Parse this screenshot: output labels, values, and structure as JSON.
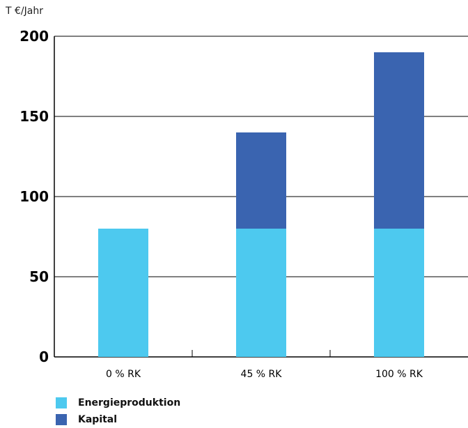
{
  "chart_data": {
    "type": "bar",
    "stacked": true,
    "unit_label": "T €/Jahr",
    "categories": [
      "0 % RK",
      "45 % RK",
      "100 % RK"
    ],
    "series": [
      {
        "name": "Energieproduktion",
        "values": [
          80,
          80,
          80
        ],
        "color": "#4dc9ef"
      },
      {
        "name": "Kapital",
        "values": [
          0,
          60,
          110
        ],
        "color": "#3a64b0"
      }
    ],
    "yticks": [
      "0",
      "50",
      "100",
      "150",
      "200"
    ],
    "ylim": [
      0,
      200
    ],
    "grid": true,
    "legend_position": "bottom-left"
  }
}
